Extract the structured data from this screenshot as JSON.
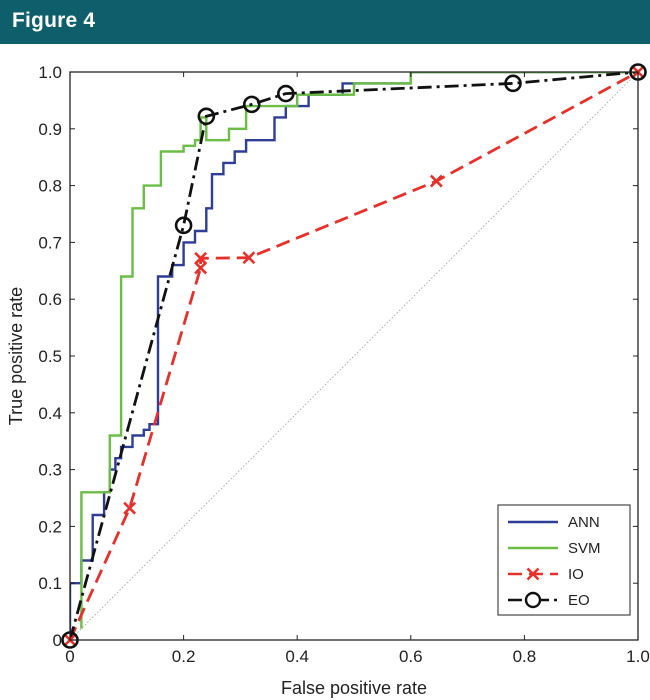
{
  "header": {
    "title": "Figure 4",
    "color": "#0e5f6b"
  },
  "chart_data": {
    "type": "line",
    "title": "",
    "xlabel": "False positive rate",
    "ylabel": "True positive rate",
    "xlim": [
      0,
      1
    ],
    "ylim": [
      0,
      1
    ],
    "xticks": [
      "0",
      "0.2",
      "0.4",
      "0.6",
      "0.8",
      "1.0"
    ],
    "yticks": [
      "0",
      "0.1",
      "0.2",
      "0.3",
      "0.4",
      "0.5",
      "0.6",
      "0.7",
      "0.8",
      "0.9",
      "1.0"
    ],
    "grid": false,
    "legend_position": "bottom-right",
    "series": [
      {
        "name": "ANN",
        "color": "#2e3d96",
        "style": "solid",
        "marker": "none",
        "x": [
          0,
          0,
          0.02,
          0.02,
          0.04,
          0.04,
          0.06,
          0.06,
          0.07,
          0.07,
          0.08,
          0.08,
          0.09,
          0.09,
          0.11,
          0.11,
          0.13,
          0.13,
          0.14,
          0.14,
          0.155,
          0.155,
          0.18,
          0.18,
          0.2,
          0.2,
          0.22,
          0.22,
          0.24,
          0.24,
          0.25,
          0.25,
          0.27,
          0.27,
          0.29,
          0.29,
          0.31,
          0.31,
          0.36,
          0.36,
          0.38,
          0.38,
          0.42,
          0.42,
          0.48,
          0.48,
          0.6,
          0.6,
          1.0
        ],
        "y": [
          0,
          0.1,
          0.1,
          0.14,
          0.14,
          0.22,
          0.22,
          0.26,
          0.26,
          0.3,
          0.3,
          0.32,
          0.32,
          0.34,
          0.34,
          0.36,
          0.36,
          0.37,
          0.37,
          0.38,
          0.38,
          0.64,
          0.64,
          0.66,
          0.66,
          0.7,
          0.7,
          0.72,
          0.72,
          0.76,
          0.76,
          0.82,
          0.82,
          0.84,
          0.84,
          0.86,
          0.86,
          0.88,
          0.88,
          0.92,
          0.92,
          0.94,
          0.94,
          0.96,
          0.96,
          0.98,
          0.98,
          1.0,
          1.0
        ]
      },
      {
        "name": "SVM",
        "color": "#6abd45",
        "style": "solid",
        "marker": "none",
        "x": [
          0.02,
          0.02,
          0.04,
          0.04,
          0.07,
          0.07,
          0.09,
          0.09,
          0.11,
          0.11,
          0.13,
          0.13,
          0.16,
          0.16,
          0.2,
          0.2,
          0.22,
          0.22,
          0.23,
          0.23,
          0.24,
          0.24,
          0.28,
          0.28,
          0.31,
          0.31,
          0.4,
          0.4,
          0.5,
          0.5,
          0.6,
          0.6,
          0.78,
          0.78,
          1.0
        ],
        "y": [
          0.02,
          0.26,
          0.26,
          0.26,
          0.26,
          0.36,
          0.36,
          0.64,
          0.64,
          0.76,
          0.76,
          0.8,
          0.8,
          0.86,
          0.86,
          0.87,
          0.87,
          0.88,
          0.88,
          0.92,
          0.92,
          0.88,
          0.88,
          0.9,
          0.9,
          0.94,
          0.94,
          0.96,
          0.96,
          0.98,
          0.98,
          1.0,
          1.0,
          1.0,
          1.0
        ]
      },
      {
        "name": "IO",
        "color": "#e8302a",
        "style": "dashed",
        "marker": "x",
        "x": [
          0,
          0.105,
          0.23,
          0.23,
          0.315,
          0.645,
          1.0
        ],
        "y": [
          0,
          0.232,
          0.655,
          0.672,
          0.673,
          0.808,
          1.0
        ]
      },
      {
        "name": "EO",
        "color": "#111111",
        "style": "dashdot",
        "marker": "o",
        "x": [
          0,
          0.2,
          0.24,
          0.32,
          0.38,
          0.78,
          1.0
        ],
        "y": [
          0,
          0.73,
          0.922,
          0.943,
          0.962,
          0.98,
          1.0
        ]
      }
    ]
  }
}
